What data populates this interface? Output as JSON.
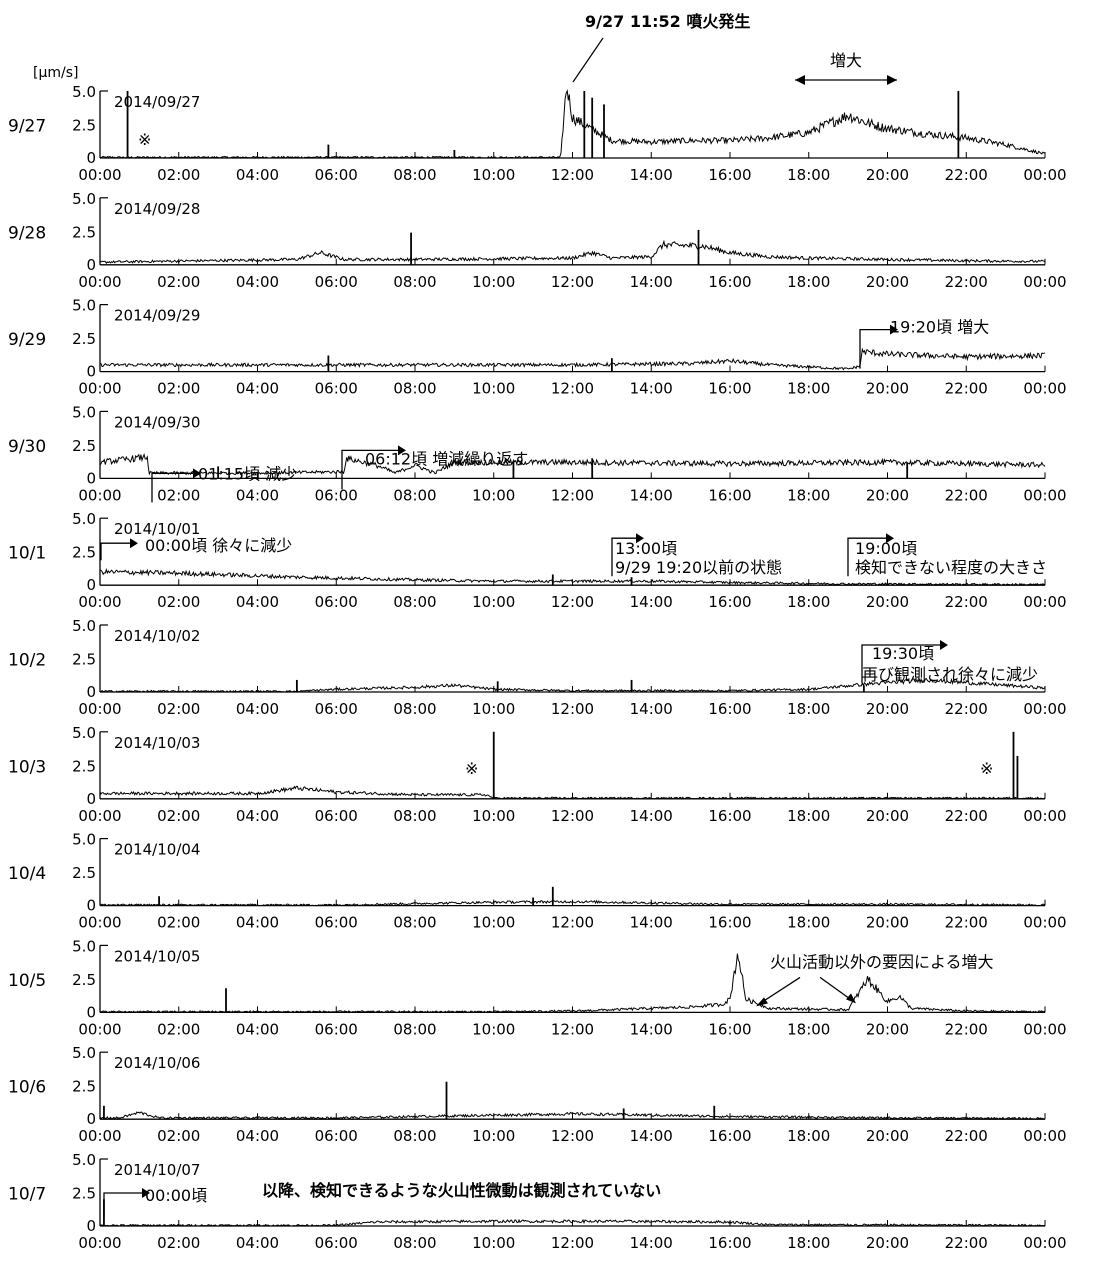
{
  "chart_data": {
    "type": "line",
    "unit": "[µm/s]",
    "ylim": [
      0,
      5.0
    ],
    "y_ticks": [
      "0",
      "2.5",
      "5.0"
    ],
    "x_ticks": [
      "00:00",
      "02:00",
      "04:00",
      "06:00",
      "08:00",
      "10:00",
      "12:00",
      "14:00",
      "16:00",
      "18:00",
      "20:00",
      "22:00",
      "00:00"
    ],
    "top_annotation": "9/27 11:52 噴火発生",
    "increase_label": "増大",
    "panels": [
      {
        "day_label": "9/27",
        "date": "2014/09/27",
        "note": "※",
        "base": [
          [
            0,
            0.05
          ],
          [
            11.7,
            0.05
          ],
          [
            11.85,
            5.5
          ],
          [
            12,
            3
          ],
          [
            13,
            1.3
          ],
          [
            14,
            1.2
          ],
          [
            15,
            1.3
          ],
          [
            16,
            1.3
          ],
          [
            17,
            1.5
          ],
          [
            18,
            1.9
          ],
          [
            19,
            3.2
          ],
          [
            19.5,
            2.6
          ],
          [
            20,
            2.2
          ],
          [
            21,
            1.8
          ],
          [
            22,
            1.5
          ],
          [
            23,
            1.0
          ],
          [
            24,
            0.3
          ]
        ],
        "spikes": [
          [
            0.7,
            5.5
          ],
          [
            9,
            0.6
          ],
          [
            5.8,
            1.0
          ],
          [
            12.3,
            5.0
          ],
          [
            12.5,
            4.5
          ],
          [
            12.8,
            4.0
          ],
          [
            21.8,
            5.2
          ]
        ]
      },
      {
        "day_label": "9/28",
        "date": "2014/09/28",
        "base": [
          [
            0,
            0.2
          ],
          [
            5,
            0.4
          ],
          [
            5.6,
            0.9
          ],
          [
            6.2,
            0.4
          ],
          [
            8,
            0.4
          ],
          [
            12,
            0.5
          ],
          [
            12.5,
            0.9
          ],
          [
            13,
            0.5
          ],
          [
            14,
            0.6
          ],
          [
            14.3,
            1.5
          ],
          [
            15.3,
            1.4
          ],
          [
            16,
            0.9
          ],
          [
            17,
            0.6
          ],
          [
            18,
            0.5
          ],
          [
            20,
            0.4
          ],
          [
            22,
            0.3
          ],
          [
            24,
            0.25
          ]
        ],
        "spikes": [
          [
            7.9,
            2.4
          ],
          [
            15.2,
            2.6
          ]
        ]
      },
      {
        "day_label": "9/29",
        "date": "2014/09/29",
        "base": [
          [
            0,
            0.5
          ],
          [
            4,
            0.5
          ],
          [
            8,
            0.5
          ],
          [
            12,
            0.5
          ],
          [
            15,
            0.6
          ],
          [
            16,
            0.8
          ],
          [
            17,
            0.5
          ],
          [
            19,
            0.2
          ],
          [
            19.3,
            0.4
          ],
          [
            19.35,
            1.5
          ],
          [
            20,
            1.3
          ],
          [
            22,
            1.1
          ],
          [
            24,
            1.2
          ]
        ],
        "spikes": [
          [
            5.8,
            1.2
          ],
          [
            13,
            1.0
          ]
        ],
        "annotations": [
          {
            "text": "19:20頃 増大"
          }
        ]
      },
      {
        "day_label": "9/30",
        "date": "2014/09/30",
        "base": [
          [
            0,
            1.2
          ],
          [
            1.2,
            1.6
          ],
          [
            1.25,
            0.4
          ],
          [
            4,
            0.4
          ],
          [
            6.2,
            0.5
          ],
          [
            6.25,
            1.5
          ],
          [
            7,
            1.0
          ],
          [
            7.5,
            0.4
          ],
          [
            8,
            1.0
          ],
          [
            8.5,
            0.4
          ],
          [
            9,
            1.2
          ],
          [
            12,
            1.2
          ],
          [
            16,
            1.1
          ],
          [
            20,
            1.2
          ],
          [
            24,
            1.0
          ]
        ],
        "spikes": [
          [
            3,
            0.9
          ],
          [
            10.5,
            1.3
          ],
          [
            12.5,
            1.5
          ],
          [
            20.5,
            1.2
          ]
        ],
        "annotations": [
          {
            "text": "01:15頃 減少"
          },
          {
            "text": "06:12頃  増減繰り返す"
          }
        ]
      },
      {
        "day_label": "10/1",
        "date": "2014/10/01",
        "base": [
          [
            0,
            1.0
          ],
          [
            2,
            0.9
          ],
          [
            5,
            0.6
          ],
          [
            8,
            0.4
          ],
          [
            10,
            0.3
          ],
          [
            12,
            0.3
          ],
          [
            13,
            0.3
          ],
          [
            14,
            0.3
          ],
          [
            16,
            0.2
          ],
          [
            19,
            0.1
          ],
          [
            24,
            0.05
          ]
        ],
        "spikes": [
          [
            11.5,
            0.8
          ],
          [
            13.5,
            0.6
          ]
        ],
        "annotations": [
          {
            "text": "00:00頃  徐々に減少"
          },
          {
            "text": "13:00頃"
          },
          {
            "text": "9/29 19:20以前の状態"
          },
          {
            "text": "19:00頃"
          },
          {
            "text": "検知できない程度の大きさ"
          }
        ]
      },
      {
        "day_label": "10/2",
        "date": "2014/10/02",
        "base": [
          [
            0,
            0.05
          ],
          [
            5,
            0.05
          ],
          [
            6,
            0.2
          ],
          [
            8,
            0.35
          ],
          [
            9,
            0.5
          ],
          [
            10,
            0.2
          ],
          [
            12,
            0.1
          ],
          [
            16,
            0.1
          ],
          [
            18,
            0.2
          ],
          [
            19.5,
            0.6
          ],
          [
            21,
            0.9
          ],
          [
            22,
            0.7
          ],
          [
            24,
            0.3
          ]
        ],
        "spikes": [
          [
            5,
            0.9
          ],
          [
            10.1,
            0.8
          ],
          [
            13.5,
            0.9
          ],
          [
            19.4,
            0.5
          ]
        ],
        "annotations": [
          {
            "text": "19:30頃"
          },
          {
            "text": "再び観測され徐々に減少"
          }
        ]
      },
      {
        "day_label": "10/3",
        "date": "2014/10/03",
        "base": [
          [
            0,
            0.4
          ],
          [
            4,
            0.4
          ],
          [
            5,
            0.8
          ],
          [
            6,
            0.5
          ],
          [
            8,
            0.3
          ],
          [
            9.8,
            0.3
          ],
          [
            10,
            0.05
          ],
          [
            23,
            0.05
          ],
          [
            24,
            0.05
          ]
        ],
        "spikes": [
          [
            10.0,
            5.0
          ],
          [
            23.2,
            5.2
          ],
          [
            23.3,
            3.2
          ]
        ],
        "annotations": [
          {
            "text": "※"
          },
          {
            "text": "※"
          }
        ]
      },
      {
        "day_label": "10/4",
        "date": "2014/10/04",
        "base": [
          [
            0,
            0.05
          ],
          [
            6,
            0.05
          ],
          [
            8,
            0.15
          ],
          [
            10,
            0.25
          ],
          [
            12,
            0.3
          ],
          [
            14,
            0.2
          ],
          [
            16,
            0.1
          ],
          [
            20,
            0.1
          ],
          [
            24,
            0.05
          ]
        ],
        "spikes": [
          [
            1.5,
            0.7
          ],
          [
            11.5,
            1.4
          ],
          [
            11,
            0.6
          ]
        ]
      },
      {
        "day_label": "10/5",
        "date": "2014/10/05",
        "base": [
          [
            0,
            0.05
          ],
          [
            10,
            0.05
          ],
          [
            12,
            0.1
          ],
          [
            14,
            0.3
          ],
          [
            15,
            0.4
          ],
          [
            15.8,
            0.6
          ],
          [
            16,
            1.0
          ],
          [
            16.2,
            4.5
          ],
          [
            16.4,
            1.0
          ],
          [
            17,
            0.3
          ],
          [
            19,
            0.2
          ],
          [
            19.5,
            2.5
          ],
          [
            20,
            0.8
          ],
          [
            20.3,
            1.2
          ],
          [
            20.6,
            0.3
          ],
          [
            22,
            0.1
          ],
          [
            24,
            0.05
          ]
        ],
        "spikes": [
          [
            3.2,
            1.8
          ]
        ],
        "annotations": [
          {
            "text": "火山活動以外の要因による増大"
          }
        ]
      },
      {
        "day_label": "10/6",
        "date": "2014/10/06",
        "base": [
          [
            0,
            0.1
          ],
          [
            0.5,
            0.1
          ],
          [
            1,
            0.5
          ],
          [
            1.5,
            0.1
          ],
          [
            6,
            0.1
          ],
          [
            8,
            0.2
          ],
          [
            12,
            0.4
          ],
          [
            14,
            0.3
          ],
          [
            16,
            0.2
          ],
          [
            20,
            0.1
          ],
          [
            24,
            0.05
          ]
        ],
        "spikes": [
          [
            0.1,
            1.0
          ],
          [
            8.8,
            2.8
          ],
          [
            13.3,
            0.8
          ],
          [
            15.6,
            1.0
          ]
        ]
      },
      {
        "day_label": "10/7",
        "date": "2014/10/07",
        "base": [
          [
            0,
            0.05
          ],
          [
            6,
            0.05
          ],
          [
            7,
            0.3
          ],
          [
            10,
            0.35
          ],
          [
            13,
            0.35
          ],
          [
            16,
            0.3
          ],
          [
            17,
            0.1
          ],
          [
            24,
            0.05
          ]
        ],
        "spikes": [
          [
            0.1,
            2.0
          ]
        ],
        "annotations": [
          {
            "text": "00:00頃"
          },
          {
            "text": "以降、検知できるような火山性微動は観測されていない"
          }
        ]
      }
    ]
  }
}
